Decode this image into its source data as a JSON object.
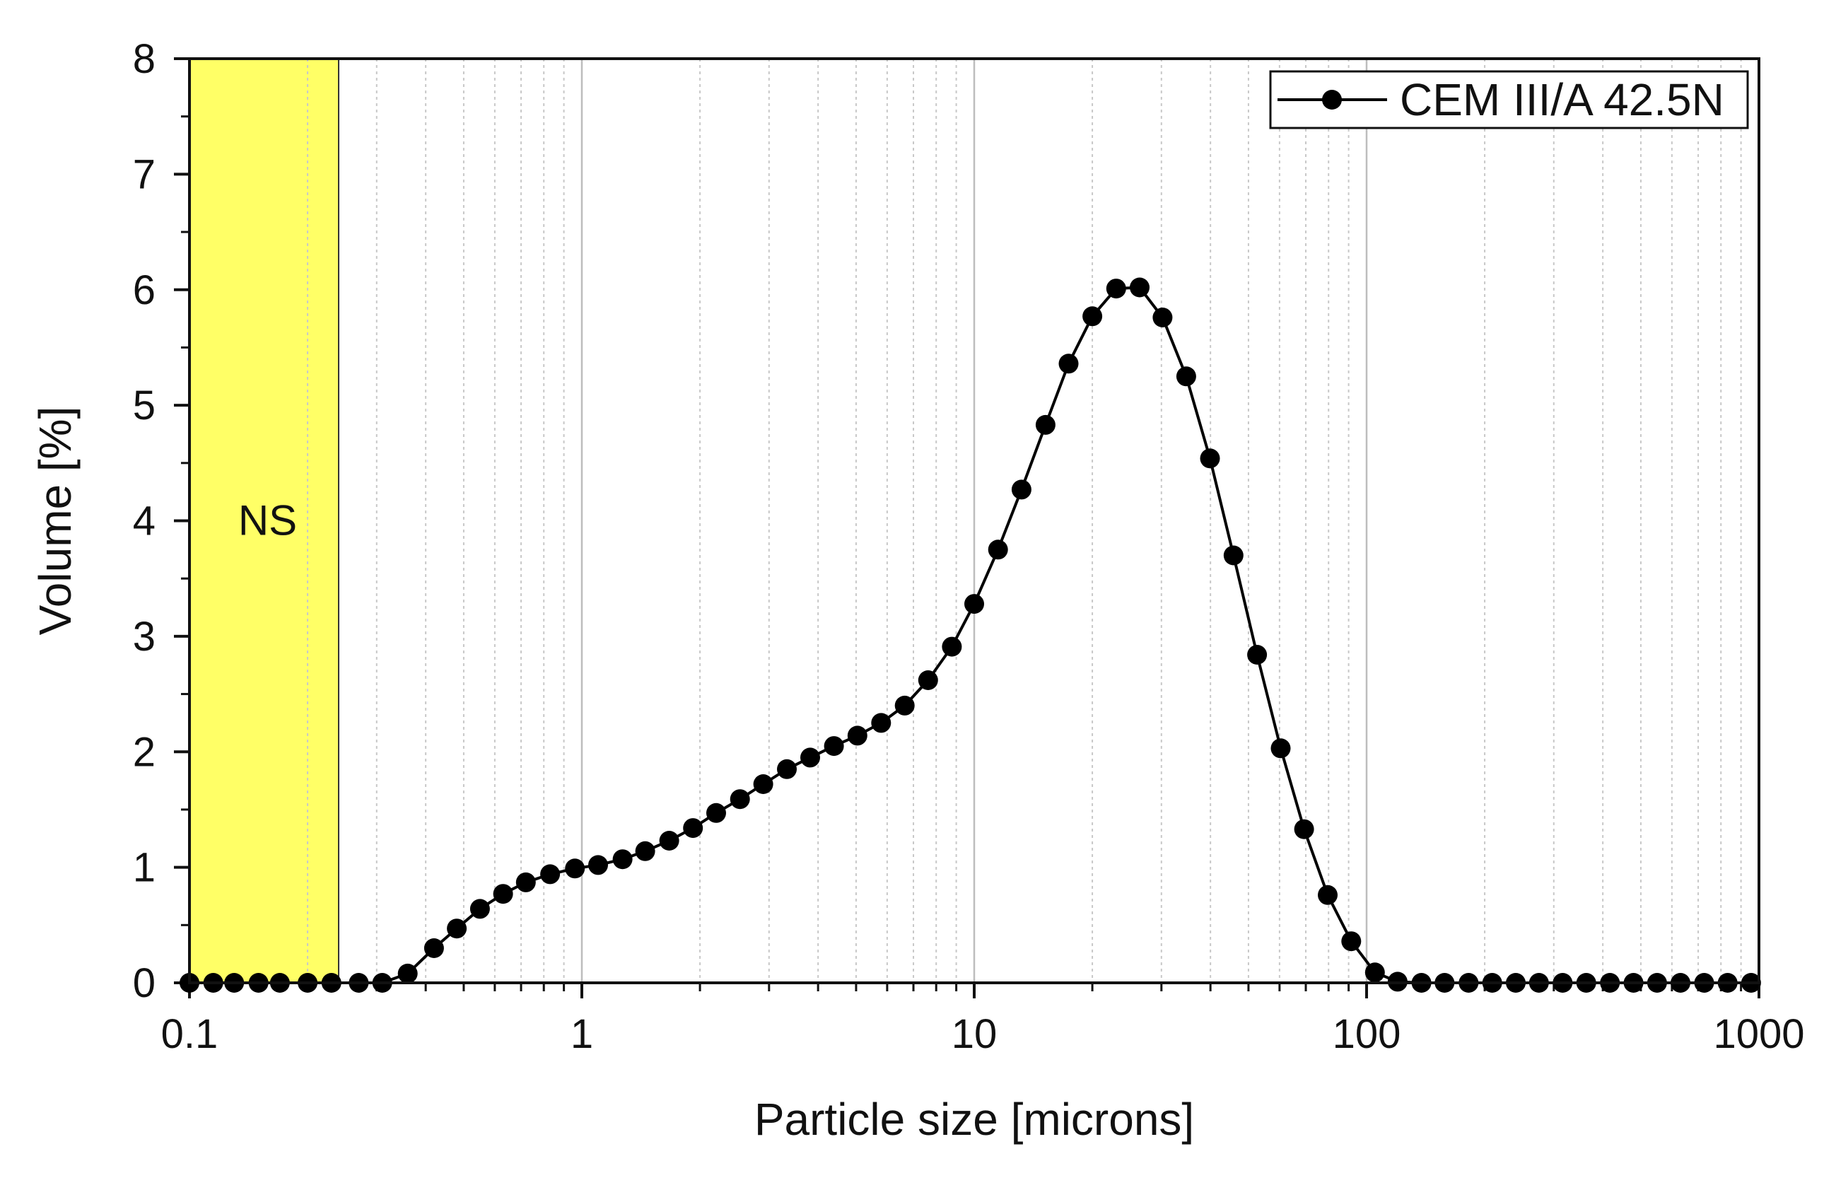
{
  "chart_data": {
    "type": "line",
    "x_scale": "log",
    "xlabel": "Particle size [microns]",
    "ylabel": "Volume [%]",
    "xlim": [
      0.1,
      1000
    ],
    "ylim": [
      0,
      8
    ],
    "x_ticks": [
      0.1,
      1,
      10,
      100,
      1000
    ],
    "x_tick_labels": [
      "0.1",
      "1",
      "10",
      "100",
      "1000"
    ],
    "y_ticks": [
      0,
      1,
      2,
      3,
      4,
      5,
      6,
      7,
      8
    ],
    "y_tick_labels": [
      "0",
      "1",
      "2",
      "3",
      "4",
      "5",
      "6",
      "7",
      "8"
    ],
    "grid": true,
    "legend_position": "top-right",
    "shaded_region": {
      "label": "NS",
      "x_start": 0.1,
      "x_end": 0.24,
      "color": "#ffff66"
    },
    "series": [
      {
        "name": "CEM III/A 42.5N",
        "color": "#000000",
        "marker": "circle",
        "points": [
          [
            0.1,
            0.0
          ],
          [
            0.115,
            0.0
          ],
          [
            0.13,
            0.0
          ],
          [
            0.15,
            0.0
          ],
          [
            0.17,
            0.0
          ],
          [
            0.2,
            0.0
          ],
          [
            0.23,
            0.0
          ],
          [
            0.27,
            0.0
          ],
          [
            0.31,
            0.0
          ],
          [
            0.36,
            0.08
          ],
          [
            0.42,
            0.3
          ],
          [
            0.48,
            0.47
          ],
          [
            0.55,
            0.64
          ],
          [
            0.63,
            0.77
          ],
          [
            0.72,
            0.87
          ],
          [
            0.83,
            0.94
          ],
          [
            0.96,
            0.99
          ],
          [
            1.1,
            1.02
          ],
          [
            1.27,
            1.07
          ],
          [
            1.45,
            1.14
          ],
          [
            1.67,
            1.23
          ],
          [
            1.92,
            1.34
          ],
          [
            2.2,
            1.47
          ],
          [
            2.53,
            1.59
          ],
          [
            2.9,
            1.72
          ],
          [
            3.33,
            1.85
          ],
          [
            3.82,
            1.95
          ],
          [
            4.39,
            2.05
          ],
          [
            5.04,
            2.14
          ],
          [
            5.79,
            2.25
          ],
          [
            6.65,
            2.4
          ],
          [
            7.63,
            2.62
          ],
          [
            8.77,
            2.91
          ],
          [
            10.0,
            3.28
          ],
          [
            11.5,
            3.75
          ],
          [
            13.2,
            4.27
          ],
          [
            15.2,
            4.83
          ],
          [
            17.4,
            5.36
          ],
          [
            20.0,
            5.77
          ],
          [
            23.0,
            6.01
          ],
          [
            26.4,
            6.02
          ],
          [
            30.2,
            5.76
          ],
          [
            34.7,
            5.25
          ],
          [
            39.9,
            4.54
          ],
          [
            45.8,
            3.7
          ],
          [
            52.6,
            2.84
          ],
          [
            60.4,
            2.03
          ],
          [
            69.3,
            1.33
          ],
          [
            79.6,
            0.76
          ],
          [
            91.4,
            0.36
          ],
          [
            105.0,
            0.09
          ],
          [
            120.0,
            0.01
          ],
          [
            138.0,
            0.0
          ],
          [
            158.0,
            0.0
          ],
          [
            182.0,
            0.0
          ],
          [
            209.0,
            0.0
          ],
          [
            240.0,
            0.0
          ],
          [
            275.0,
            0.0
          ],
          [
            316.0,
            0.0
          ],
          [
            363.0,
            0.0
          ],
          [
            417.0,
            0.0
          ],
          [
            479.0,
            0.0
          ],
          [
            550.0,
            0.0
          ],
          [
            631.0,
            0.0
          ],
          [
            725.0,
            0.0
          ],
          [
            832.0,
            0.0
          ],
          [
            955.0,
            0.0
          ]
        ]
      }
    ]
  }
}
